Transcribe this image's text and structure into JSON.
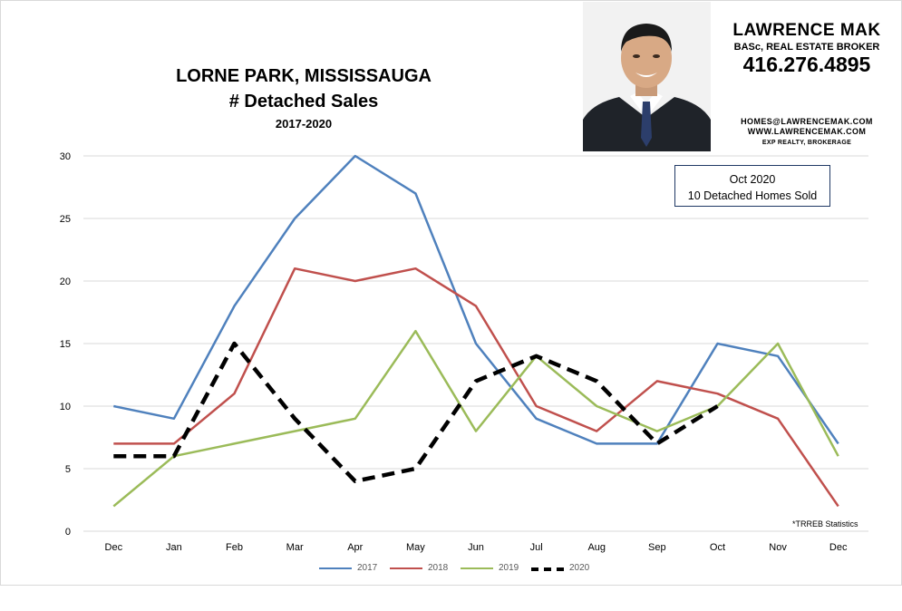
{
  "header": {
    "title_line1": "LORNE PARK, MISSISSAUGA",
    "title_line2": "# Detached Sales",
    "title_line3": "2017-2020"
  },
  "branding": {
    "name": "LAWRENCE MAK",
    "credentials": "BASc, REAL ESTATE BROKER",
    "phone": "416.276.4895",
    "email": "HOMES@LAWRENCEMAK.COM",
    "website": "WWW.LAWRENCEMAK.COM",
    "brokerage": "EXP REALTY, BROKERAGE"
  },
  "annotation": {
    "line1": "Oct 2020",
    "line2": "10 Detached Homes Sold"
  },
  "source_note": "*TRREB Statistics",
  "colors": {
    "s2017": "#4f81bd",
    "s2018": "#c0504d",
    "s2019": "#9bbb59",
    "s2020": "#000000",
    "grid": "#d9d9d9",
    "axis_text": "#000000"
  },
  "chart_data": {
    "type": "line",
    "categories": [
      "Dec",
      "Jan",
      "Feb",
      "Mar",
      "Apr",
      "May",
      "Jun",
      "Jul",
      "Aug",
      "Sep",
      "Oct",
      "Nov",
      "Dec"
    ],
    "yticks": [
      "0",
      "5",
      "10",
      "15",
      "20",
      "25",
      "30"
    ],
    "ylim": [
      0,
      30
    ],
    "grid": true,
    "legend_position": "bottom",
    "series": [
      {
        "name": "2017",
        "color": "#4f81bd",
        "dashed": false,
        "values": [
          10,
          9,
          18,
          25,
          30,
          27,
          15,
          9,
          7,
          7,
          15,
          14,
          7
        ]
      },
      {
        "name": "2018",
        "color": "#c0504d",
        "dashed": false,
        "values": [
          7,
          7,
          11,
          21,
          20,
          21,
          18,
          10,
          8,
          12,
          11,
          9,
          2
        ]
      },
      {
        "name": "2019",
        "color": "#9bbb59",
        "dashed": false,
        "values": [
          2,
          6,
          7,
          8,
          9,
          16,
          8,
          14,
          10,
          8,
          10,
          15,
          6
        ]
      },
      {
        "name": "2020",
        "color": "#000000",
        "dashed": true,
        "values": [
          6,
          6,
          15,
          9,
          4,
          5,
          12,
          14,
          12,
          7,
          10,
          null,
          null
        ]
      }
    ]
  }
}
